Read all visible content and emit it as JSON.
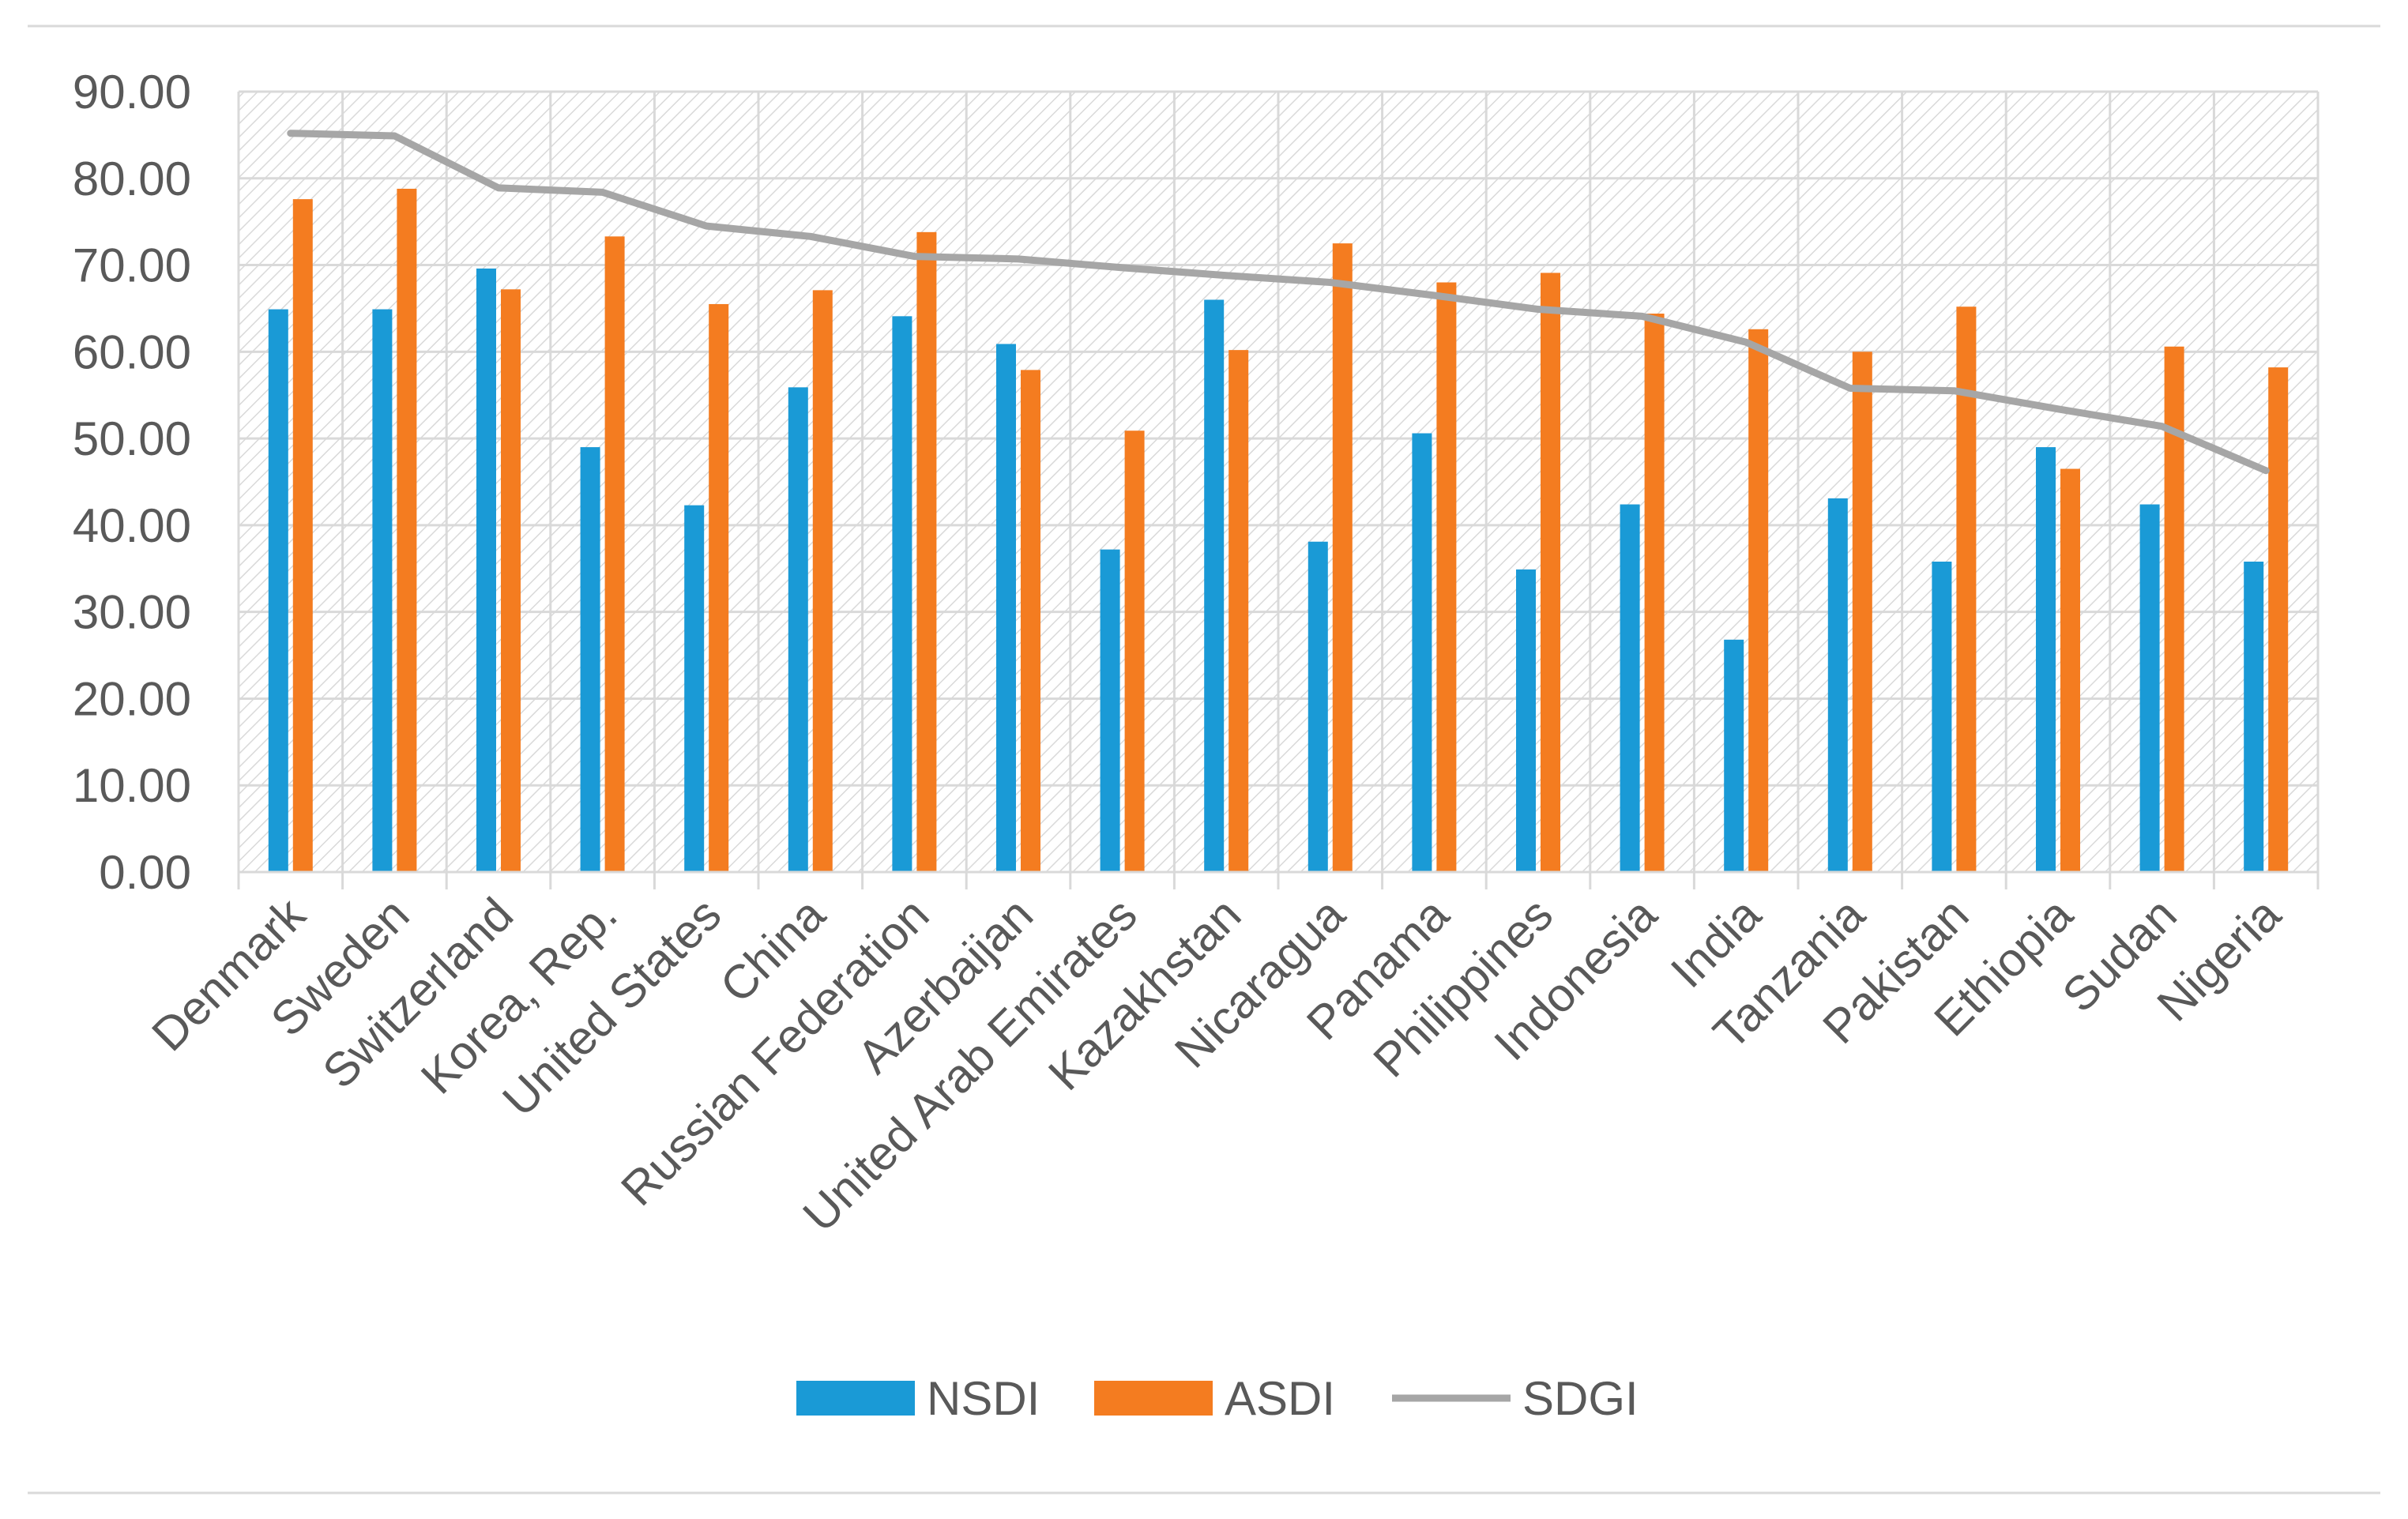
{
  "chart_data": {
    "type": "bar",
    "title": "",
    "xlabel": "",
    "ylabel": "",
    "ylim": [
      0,
      90
    ],
    "yticks": [
      "0.00",
      "10.00",
      "20.00",
      "30.00",
      "40.00",
      "50.00",
      "60.00",
      "70.00",
      "80.00",
      "90.00"
    ],
    "grid": true,
    "legend_position": "bottom",
    "categories": [
      "Denmark",
      "Sweden",
      "Switzerland",
      "Korea, Rep.",
      "United States",
      "China",
      "Russian Federation",
      "Azerbaijan",
      "United Arab Emirates",
      "Kazakhstan",
      "Nicaragua",
      "Panama",
      "Philippines",
      "Indonesia",
      "India",
      "Tanzania",
      "Pakistan",
      "Ethiopia",
      "Sudan",
      "Nigeria"
    ],
    "series": [
      {
        "name": "NSDI",
        "kind": "bar",
        "color": "#1a9ad6",
        "values": [
          64.9,
          64.9,
          69.6,
          49.0,
          42.3,
          55.9,
          64.1,
          60.9,
          37.2,
          66.0,
          38.1,
          50.6,
          34.9,
          42.4,
          26.8,
          43.1,
          35.8,
          49.0,
          42.4,
          35.8
        ]
      },
      {
        "name": "ASDI",
        "kind": "bar",
        "color": "#f47c20",
        "values": [
          77.6,
          78.8,
          67.2,
          73.3,
          65.5,
          67.1,
          73.8,
          57.9,
          50.9,
          60.2,
          72.5,
          68.0,
          69.1,
          64.4,
          62.6,
          60.0,
          65.2,
          46.5,
          60.6,
          58.2
        ]
      },
      {
        "name": "SDGI",
        "kind": "line",
        "color": "#a6a6a6",
        "values": [
          85.2,
          84.9,
          78.9,
          78.4,
          74.5,
          73.3,
          71.0,
          70.7,
          69.7,
          68.8,
          68.0,
          66.5,
          64.9,
          64.1,
          61.1,
          55.8,
          55.5,
          53.4,
          51.4,
          46.3
        ]
      }
    ]
  }
}
